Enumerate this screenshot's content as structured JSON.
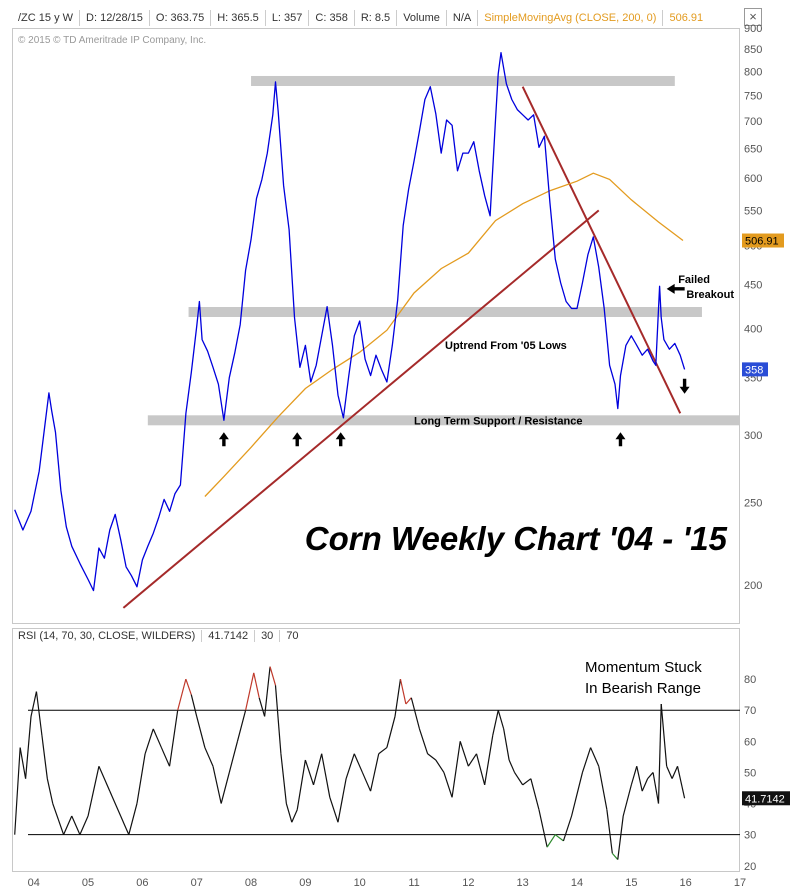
{
  "header": {
    "symbol": "/ZC 15 y W",
    "date": "D: 12/28/15",
    "open": "O: 363.75",
    "high": "H: 365.5",
    "low": "L: 357",
    "close": "C: 358",
    "range": "R: 8.5",
    "volume_label": "Volume",
    "volume_value": "N/A",
    "study": "SimpleMovingAvg (CLOSE, 200, 0)",
    "study_value": "506.91",
    "close_glyph": "×"
  },
  "copyright": "© 2015 © TD Ameritrade IP Company, Inc.",
  "rsi_header": {
    "study": "RSI (14, 70, 30, CLOSE, WILDERS)",
    "value": "41.7142",
    "lower": "30",
    "upper": "70"
  },
  "annotations": {
    "title": "Corn Weekly Chart '04 - '15",
    "failed_breakout_1": "Failed",
    "failed_breakout_2": "Breakout",
    "uptrend": "Uptrend From '05 Lows",
    "support": "Long Term Support / Resistance",
    "momentum_1": "Momentum Stuck",
    "momentum_2": "In Bearish Range"
  },
  "colors": {
    "price": "#0000dd",
    "sma": "#e39b1f",
    "trendline": "#a52a2a",
    "zone": "#c8c8c8",
    "rsi": "#111111",
    "rsi_overbought": "#c0392b",
    "rsi_oversold": "#2e8b2e",
    "price_tag": "#2a4dd6",
    "sma_tag": "#e39b1f"
  },
  "chart_data": [
    {
      "type": "line",
      "panel": "price",
      "scale": "log",
      "ylim": [
        180,
        900
      ],
      "xlim": [
        2003.6,
        2017.0
      ],
      "y_ticks": [
        200,
        250,
        300,
        350,
        400,
        450,
        500,
        550,
        600,
        650,
        700,
        750,
        800,
        850,
        900
      ],
      "x_ticks": [
        2004,
        2005,
        2006,
        2007,
        2008,
        2009,
        2010,
        2011,
        2012,
        2013,
        2014,
        2015,
        2016,
        2017
      ],
      "x_tick_labels": [
        "04",
        "05",
        "06",
        "07",
        "08",
        "09",
        "10",
        "11",
        "12",
        "13",
        "14",
        "15",
        "16",
        "17"
      ],
      "series": [
        {
          "values_key": "price",
          "points": [
            [
              2003.65,
              245
            ],
            [
              2003.8,
              232
            ],
            [
              2003.95,
              244
            ],
            [
              2004.1,
              272
            ],
            [
              2004.2,
              306
            ],
            [
              2004.28,
              336
            ],
            [
              2004.33,
              320
            ],
            [
              2004.4,
              302
            ],
            [
              2004.5,
              258
            ],
            [
              2004.6,
              234
            ],
            [
              2004.7,
              222
            ],
            [
              2004.85,
              212
            ],
            [
              2005.0,
              203
            ],
            [
              2005.1,
              197
            ],
            [
              2005.2,
              221
            ],
            [
              2005.3,
              215
            ],
            [
              2005.4,
              232
            ],
            [
              2005.5,
              242
            ],
            [
              2005.6,
              226
            ],
            [
              2005.7,
              210
            ],
            [
              2005.8,
              205
            ],
            [
              2005.9,
              199
            ],
            [
              2006.0,
              214
            ],
            [
              2006.1,
              222
            ],
            [
              2006.2,
              230
            ],
            [
              2006.3,
              240
            ],
            [
              2006.4,
              252
            ],
            [
              2006.5,
              244
            ],
            [
              2006.6,
              256
            ],
            [
              2006.7,
              262
            ],
            [
              2006.8,
              318
            ],
            [
              2006.9,
              355
            ],
            [
              2007.0,
              402
            ],
            [
              2007.05,
              430
            ],
            [
              2007.1,
              388
            ],
            [
              2007.2,
              376
            ],
            [
              2007.3,
              360
            ],
            [
              2007.4,
              344
            ],
            [
              2007.5,
              312
            ],
            [
              2007.6,
              350
            ],
            [
              2007.7,
              374
            ],
            [
              2007.8,
              404
            ],
            [
              2007.9,
              468
            ],
            [
              2008.0,
              508
            ],
            [
              2008.1,
              568
            ],
            [
              2008.2,
              598
            ],
            [
              2008.3,
              642
            ],
            [
              2008.4,
              712
            ],
            [
              2008.45,
              778
            ],
            [
              2008.5,
              718
            ],
            [
              2008.6,
              588
            ],
            [
              2008.7,
              522
            ],
            [
              2008.8,
              412
            ],
            [
              2008.9,
              360
            ],
            [
              2009.0,
              382
            ],
            [
              2009.1,
              346
            ],
            [
              2009.2,
              362
            ],
            [
              2009.3,
              392
            ],
            [
              2009.4,
              424
            ],
            [
              2009.5,
              382
            ],
            [
              2009.6,
              334
            ],
            [
              2009.7,
              314
            ],
            [
              2009.8,
              352
            ],
            [
              2009.9,
              392
            ],
            [
              2010.0,
              408
            ],
            [
              2010.1,
              368
            ],
            [
              2010.2,
              352
            ],
            [
              2010.3,
              372
            ],
            [
              2010.4,
              358
            ],
            [
              2010.5,
              346
            ],
            [
              2010.6,
              382
            ],
            [
              2010.7,
              432
            ],
            [
              2010.8,
              528
            ],
            [
              2010.9,
              582
            ],
            [
              2011.0,
              628
            ],
            [
              2011.1,
              682
            ],
            [
              2011.2,
              742
            ],
            [
              2011.3,
              768
            ],
            [
              2011.4,
              714
            ],
            [
              2011.5,
              642
            ],
            [
              2011.6,
              702
            ],
            [
              2011.7,
              692
            ],
            [
              2011.8,
              612
            ],
            [
              2011.9,
              642
            ],
            [
              2012.0,
              642
            ],
            [
              2012.1,
              662
            ],
            [
              2012.2,
              612
            ],
            [
              2012.3,
              572
            ],
            [
              2012.4,
              542
            ],
            [
              2012.5,
              702
            ],
            [
              2012.55,
              795
            ],
            [
              2012.6,
              842
            ],
            [
              2012.7,
              774
            ],
            [
              2012.8,
              742
            ],
            [
              2012.9,
              722
            ],
            [
              2013.0,
              712
            ],
            [
              2013.1,
              702
            ],
            [
              2013.2,
              712
            ],
            [
              2013.3,
              652
            ],
            [
              2013.4,
              672
            ],
            [
              2013.5,
              562
            ],
            [
              2013.6,
              482
            ],
            [
              2013.7,
              452
            ],
            [
              2013.8,
              430
            ],
            [
              2013.9,
              422
            ],
            [
              2014.0,
              422
            ],
            [
              2014.1,
              452
            ],
            [
              2014.2,
              488
            ],
            [
              2014.3,
              512
            ],
            [
              2014.4,
              472
            ],
            [
              2014.5,
              422
            ],
            [
              2014.6,
              362
            ],
            [
              2014.7,
              344
            ],
            [
              2014.75,
              322
            ],
            [
              2014.8,
              352
            ],
            [
              2014.9,
              382
            ],
            [
              2015.0,
              392
            ],
            [
              2015.1,
              382
            ],
            [
              2015.2,
              372
            ],
            [
              2015.3,
              378
            ],
            [
              2015.4,
              366
            ],
            [
              2015.45,
              362
            ],
            [
              2015.52,
              448
            ],
            [
              2015.55,
              412
            ],
            [
              2015.6,
              388
            ],
            [
              2015.7,
              378
            ],
            [
              2015.8,
              384
            ],
            [
              2015.9,
              372
            ],
            [
              2015.98,
              358
            ]
          ]
        },
        {
          "name": "SimpleMovingAvg (CLOSE, 200, 0)",
          "points": [
            [
              2007.15,
              254
            ],
            [
              2007.5,
              268
            ],
            [
              2008.0,
              290
            ],
            [
              2008.5,
              315
            ],
            [
              2009.0,
              340
            ],
            [
              2009.5,
              358
            ],
            [
              2010.0,
              375
            ],
            [
              2010.5,
              398
            ],
            [
              2011.0,
              440
            ],
            [
              2011.5,
              470
            ],
            [
              2012.0,
              490
            ],
            [
              2012.5,
              535
            ],
            [
              2013.0,
              560
            ],
            [
              2013.5,
              580
            ],
            [
              2014.0,
              595
            ],
            [
              2014.3,
              608
            ],
            [
              2014.6,
              598
            ],
            [
              2015.0,
              566
            ],
            [
              2015.5,
              533
            ],
            [
              2015.95,
              507
            ]
          ]
        }
      ],
      "trendlines": [
        {
          "label": "Uptrend From '05 Lows",
          "points": [
            [
              2005.65,
              188
            ],
            [
              2014.4,
              550
            ]
          ]
        },
        {
          "label": "",
          "points": [
            [
              2013.0,
              768
            ],
            [
              2015.9,
              318
            ]
          ]
        }
      ],
      "horizontal_zones": [
        {
          "label": "",
          "value": 780,
          "x_range": [
            2008.0,
            2015.8
          ]
        },
        {
          "label": "",
          "value": 418,
          "x_range": [
            2006.85,
            2016.3
          ]
        },
        {
          "label": "Long Term Support / Resistance",
          "value": 312,
          "x_range": [
            2006.1,
            2017.0
          ]
        }
      ],
      "arrows_up": [
        [
          2007.5,
          312
        ],
        [
          2008.85,
          312
        ],
        [
          2009.65,
          312
        ],
        [
          2014.8,
          312
        ]
      ],
      "last_price": "358",
      "sma_last": "506.91"
    },
    {
      "type": "line",
      "panel": "rsi",
      "ylim": [
        18,
        90
      ],
      "y_ticks": [
        20,
        30,
        40,
        50,
        60,
        70,
        80
      ],
      "levels": [
        30,
        70
      ],
      "points": [
        [
          2003.65,
          30
        ],
        [
          2003.75,
          58
        ],
        [
          2003.85,
          48
        ],
        [
          2003.95,
          68
        ],
        [
          2004.05,
          76
        ],
        [
          2004.15,
          62
        ],
        [
          2004.25,
          48
        ],
        [
          2004.35,
          40
        ],
        [
          2004.45,
          35
        ],
        [
          2004.55,
          30
        ],
        [
          2004.7,
          36
        ],
        [
          2004.85,
          30
        ],
        [
          2005.0,
          36
        ],
        [
          2005.2,
          52
        ],
        [
          2005.4,
          44
        ],
        [
          2005.6,
          36
        ],
        [
          2005.75,
          30
        ],
        [
          2005.9,
          40
        ],
        [
          2006.05,
          56
        ],
        [
          2006.2,
          64
        ],
        [
          2006.35,
          58
        ],
        [
          2006.5,
          52
        ],
        [
          2006.65,
          70
        ],
        [
          2006.8,
          80
        ],
        [
          2006.9,
          75
        ],
        [
          2007.0,
          68
        ],
        [
          2007.15,
          58
        ],
        [
          2007.3,
          52
        ],
        [
          2007.45,
          40
        ],
        [
          2007.6,
          50
        ],
        [
          2007.75,
          60
        ],
        [
          2007.9,
          70
        ],
        [
          2008.05,
          82
        ],
        [
          2008.15,
          74
        ],
        [
          2008.25,
          68
        ],
        [
          2008.35,
          84
        ],
        [
          2008.45,
          78
        ],
        [
          2008.55,
          56
        ],
        [
          2008.65,
          40
        ],
        [
          2008.75,
          34
        ],
        [
          2008.85,
          38
        ],
        [
          2009.0,
          54
        ],
        [
          2009.15,
          46
        ],
        [
          2009.3,
          56
        ],
        [
          2009.45,
          42
        ],
        [
          2009.6,
          34
        ],
        [
          2009.75,
          48
        ],
        [
          2009.9,
          56
        ],
        [
          2010.05,
          50
        ],
        [
          2010.2,
          44
        ],
        [
          2010.35,
          56
        ],
        [
          2010.5,
          58
        ],
        [
          2010.65,
          68
        ],
        [
          2010.75,
          80
        ],
        [
          2010.85,
          72
        ],
        [
          2010.95,
          74
        ],
        [
          2011.1,
          64
        ],
        [
          2011.25,
          56
        ],
        [
          2011.4,
          54
        ],
        [
          2011.55,
          50
        ],
        [
          2011.7,
          42
        ],
        [
          2011.85,
          60
        ],
        [
          2012.0,
          52
        ],
        [
          2012.15,
          56
        ],
        [
          2012.3,
          46
        ],
        [
          2012.45,
          62
        ],
        [
          2012.55,
          70
        ],
        [
          2012.65,
          64
        ],
        [
          2012.75,
          54
        ],
        [
          2012.85,
          50
        ],
        [
          2013.0,
          46
        ],
        [
          2013.15,
          48
        ],
        [
          2013.3,
          38
        ],
        [
          2013.45,
          26
        ],
        [
          2013.6,
          30
        ],
        [
          2013.75,
          28
        ],
        [
          2013.9,
          36
        ],
        [
          2014.1,
          50
        ],
        [
          2014.25,
          58
        ],
        [
          2014.4,
          52
        ],
        [
          2014.55,
          38
        ],
        [
          2014.65,
          24
        ],
        [
          2014.75,
          22
        ],
        [
          2014.85,
          36
        ],
        [
          2015.0,
          46
        ],
        [
          2015.1,
          52
        ],
        [
          2015.2,
          44
        ],
        [
          2015.3,
          48
        ],
        [
          2015.4,
          50
        ],
        [
          2015.5,
          40
        ],
        [
          2015.55,
          72
        ],
        [
          2015.65,
          52
        ],
        [
          2015.75,
          48
        ],
        [
          2015.85,
          52
        ],
        [
          2015.98,
          41.7
        ]
      ],
      "last_value": "41.7142"
    }
  ]
}
